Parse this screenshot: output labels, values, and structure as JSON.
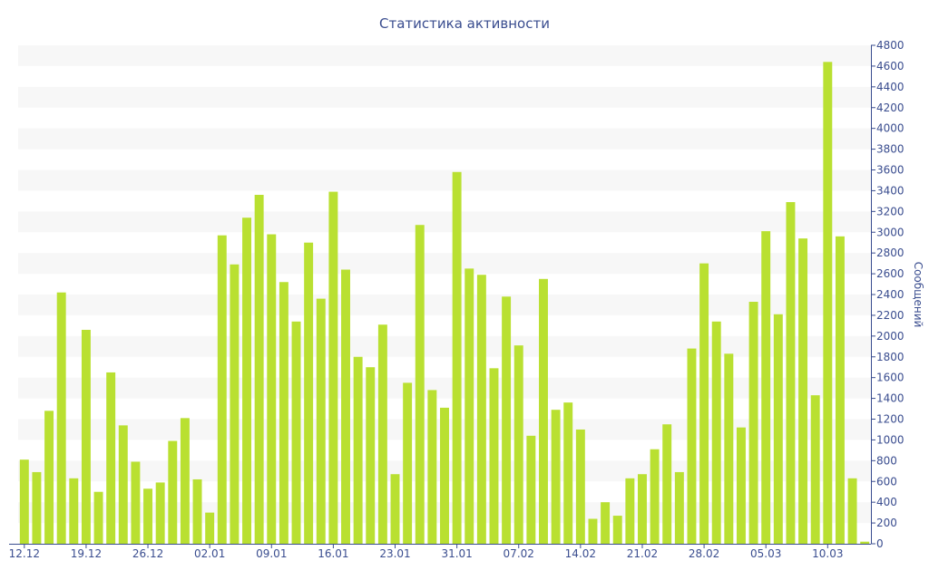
{
  "chart_data": {
    "type": "bar",
    "title": "Статистика активности",
    "ylabel": "Сообщений",
    "xlabel": "",
    "ylim": [
      0,
      4800
    ],
    "y_ticks": [
      0,
      200,
      400,
      600,
      800,
      1000,
      1200,
      1400,
      1600,
      1800,
      2000,
      2200,
      2400,
      2600,
      2800,
      3000,
      3200,
      3400,
      3600,
      3800,
      4000,
      4200,
      4400,
      4600,
      4800
    ],
    "x_tick_labels": [
      {
        "index": 0,
        "label": "12.12"
      },
      {
        "index": 5,
        "label": "19.12"
      },
      {
        "index": 10,
        "label": "26.12"
      },
      {
        "index": 15,
        "label": "02.01"
      },
      {
        "index": 20,
        "label": "09.01"
      },
      {
        "index": 25,
        "label": "16.01"
      },
      {
        "index": 30,
        "label": "23.01"
      },
      {
        "index": 35,
        "label": "31.01"
      },
      {
        "index": 40,
        "label": "07.02"
      },
      {
        "index": 45,
        "label": "14.02"
      },
      {
        "index": 50,
        "label": "21.02"
      },
      {
        "index": 55,
        "label": "28.02"
      },
      {
        "index": 60,
        "label": "05.03"
      },
      {
        "index": 65,
        "label": "10.03"
      }
    ],
    "values": [
      810,
      690,
      1280,
      2420,
      630,
      2060,
      500,
      1650,
      1140,
      790,
      530,
      590,
      990,
      1210,
      620,
      300,
      2970,
      2690,
      3140,
      3360,
      2980,
      2520,
      2140,
      2900,
      2360,
      3390,
      2640,
      1800,
      1700,
      2110,
      670,
      1550,
      3070,
      1480,
      1310,
      3580,
      2650,
      2590,
      1690,
      2380,
      1910,
      1040,
      2550,
      1290,
      1360,
      1100,
      240,
      400,
      270,
      630,
      670,
      910,
      1150,
      690,
      1880,
      2700,
      2140,
      1830,
      1120,
      2330,
      3010,
      2210,
      3290,
      2940,
      1430,
      4640,
      2960,
      630,
      20
    ],
    "grid": true,
    "grid_style": "alternating-bands",
    "legend": "none",
    "colors": {
      "bar": "#b9e031",
      "band": "#f7f7f7",
      "axis": "#3a4d8f",
      "text": "#3a4d8f"
    }
  }
}
